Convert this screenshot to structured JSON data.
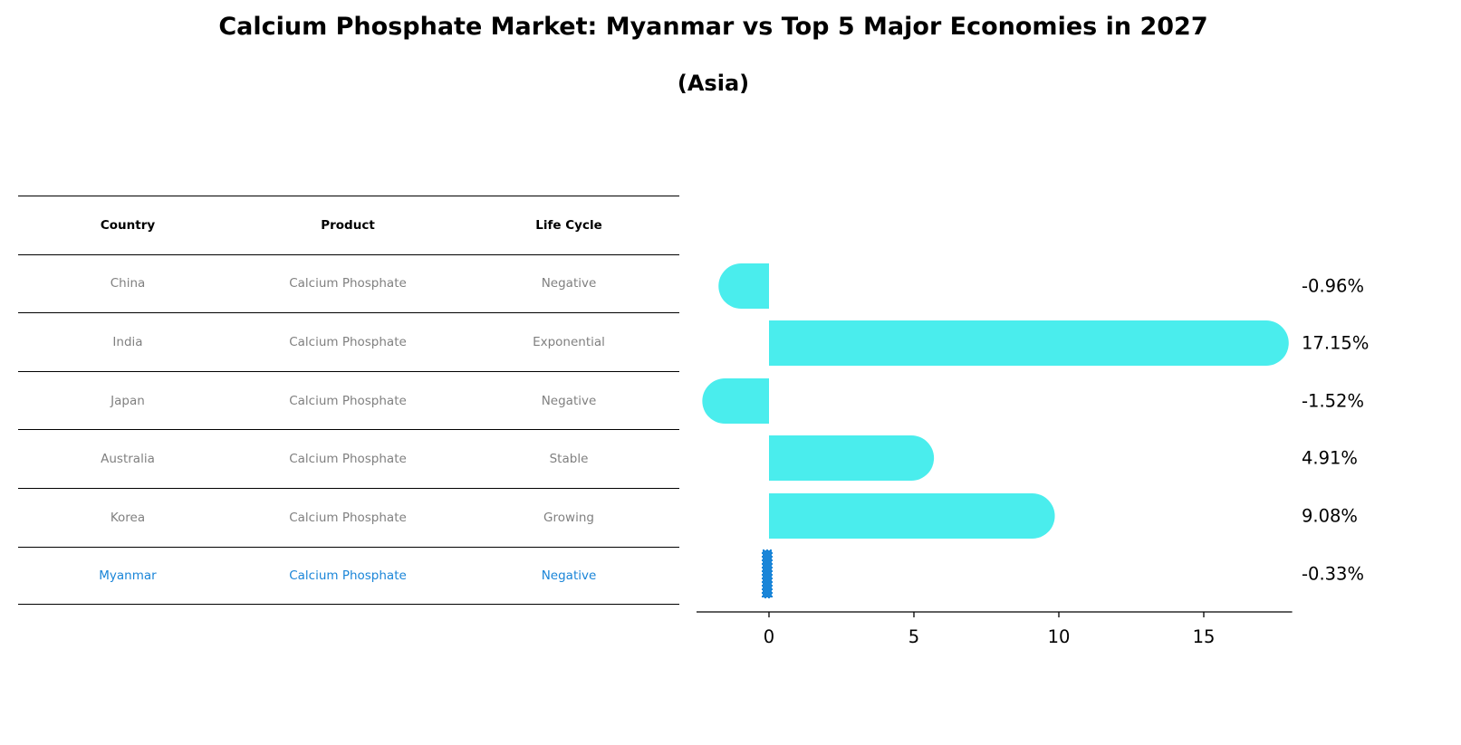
{
  "title": "Calcium Phosphate Market: Myanmar vs Top 5 Major Economies in 2027",
  "subtitle": "(Asia)",
  "table": {
    "headers": [
      "Country",
      "Product",
      "Life Cycle"
    ],
    "rows": [
      {
        "country": "China",
        "product": "Calcium Phosphate",
        "life_cycle": "Negative"
      },
      {
        "country": "India",
        "product": "Calcium Phosphate",
        "life_cycle": "Exponential"
      },
      {
        "country": "Japan",
        "product": "Calcium Phosphate",
        "life_cycle": "Negative"
      },
      {
        "country": "Australia",
        "product": "Calcium Phosphate",
        "life_cycle": "Stable"
      },
      {
        "country": "Korea",
        "product": "Calcium Phosphate",
        "life_cycle": "Growing"
      },
      {
        "country": "Myanmar",
        "product": "Calcium Phosphate",
        "life_cycle": "Negative"
      }
    ]
  },
  "colors": {
    "bar": "#4aeded",
    "highlight": "#1a85d8",
    "row_text": "#808080"
  },
  "chart_data": {
    "type": "bar",
    "orientation": "horizontal",
    "title": "Calcium Phosphate Market: Myanmar vs Top 5 Major Economies in 2027",
    "subtitle": "(Asia)",
    "categories": [
      "China",
      "India",
      "Japan",
      "Australia",
      "Korea",
      "Myanmar"
    ],
    "values": [
      -0.96,
      17.15,
      -1.52,
      4.91,
      9.08,
      -0.33
    ],
    "value_labels": [
      "-0.96%",
      "17.15%",
      "-1.52%",
      "4.91%",
      "9.08%",
      "-0.33%"
    ],
    "highlight_category": "Myanmar",
    "xlabel": "",
    "ylabel": "",
    "xticks": [
      0,
      5,
      10,
      15
    ],
    "xtick_labels": [
      "0",
      "5",
      "10",
      "15"
    ],
    "xlim": [
      -2.5,
      18.05
    ],
    "grid": false,
    "legend": "none"
  }
}
